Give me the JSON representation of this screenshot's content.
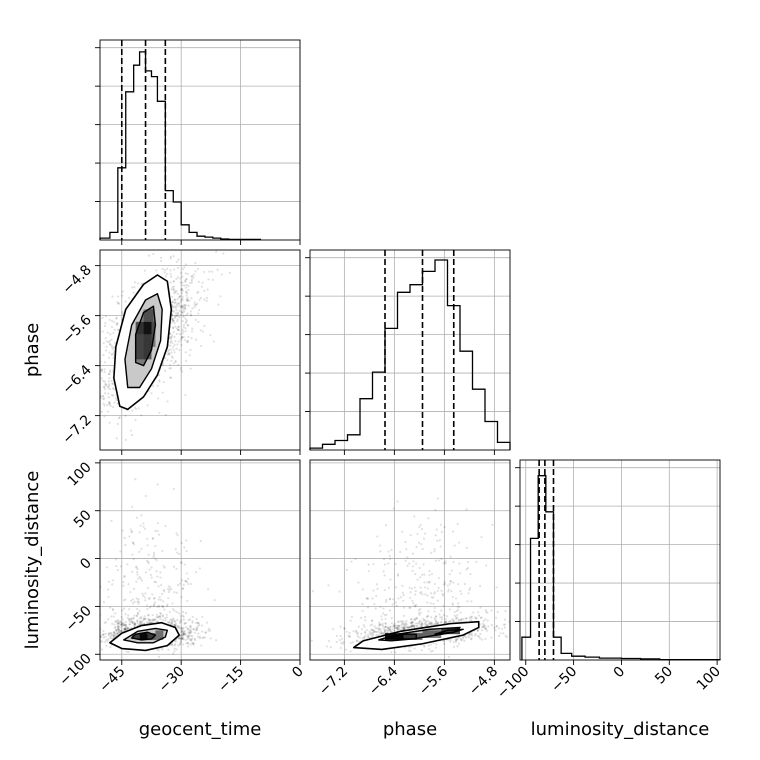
{
  "chart_data": {
    "type": "corner",
    "parameters": [
      "geocent_time",
      "phase",
      "luminosity_distance"
    ],
    "axis_labels": {
      "geocent_time": "geocent_time",
      "phase": "phase",
      "luminosity_distance": "luminosity_distance"
    },
    "ranges": {
      "geocent_time": [
        -50.5,
        0
      ],
      "phase": [
        -7.75,
        -4.55
      ],
      "luminosity_distance": [
        -106,
        103
      ]
    },
    "ticks": {
      "geocent_time": {
        "values": [
          -45,
          -30,
          -15,
          0
        ],
        "labels": [
          "−45",
          "−30",
          "−15",
          "0"
        ]
      },
      "phase": {
        "values": [
          -7.2,
          -6.4,
          -5.6,
          -4.8
        ],
        "labels": [
          "−7.2",
          "−6.4",
          "−5.6",
          "−4.8"
        ]
      },
      "luminosity_distance": {
        "values": [
          -100,
          -50,
          0,
          50,
          100
        ],
        "labels": [
          "−100",
          "−50",
          "0",
          "50",
          "100"
        ]
      }
    },
    "grid": true,
    "histograms": {
      "geocent_time": {
        "quantiles": [
          -45,
          -39,
          -34
        ],
        "bins": [
          [
            -50.5,
            -48.0,
            0.01
          ],
          [
            -48.0,
            -46.0,
            0.04
          ],
          [
            -46.0,
            -44.0,
            0.38
          ],
          [
            -44.0,
            -42.0,
            0.78
          ],
          [
            -42.0,
            -40.5,
            0.92
          ],
          [
            -40.5,
            -39.0,
            0.99
          ],
          [
            -39.0,
            -37.5,
            0.89
          ],
          [
            -37.5,
            -36.0,
            0.86
          ],
          [
            -36.0,
            -34.0,
            0.73
          ],
          [
            -34.0,
            -32.0,
            0.26
          ],
          [
            -32.0,
            -30.0,
            0.2
          ],
          [
            -30.0,
            -28.0,
            0.08
          ],
          [
            -28.0,
            -26.0,
            0.04
          ],
          [
            -26.0,
            -24.0,
            0.02
          ],
          [
            -24.0,
            -22.0,
            0.015
          ],
          [
            -22.0,
            -20.0,
            0.01
          ],
          [
            -20.0,
            -18.0,
            0.005
          ],
          [
            -18.0,
            -10.0,
            0.003
          ]
        ]
      },
      "phase": {
        "quantiles": [
          -6.55,
          -5.95,
          -5.45
        ],
        "bins": [
          [
            -7.75,
            -7.55,
            0.01
          ],
          [
            -7.55,
            -7.35,
            0.03
          ],
          [
            -7.35,
            -7.15,
            0.05
          ],
          [
            -7.15,
            -6.95,
            0.08
          ],
          [
            -6.95,
            -6.75,
            0.27
          ],
          [
            -6.75,
            -6.55,
            0.41
          ],
          [
            -6.55,
            -6.35,
            0.64
          ],
          [
            -6.35,
            -6.15,
            0.83
          ],
          [
            -6.15,
            -5.95,
            0.87
          ],
          [
            -5.95,
            -5.75,
            0.94
          ],
          [
            -5.75,
            -5.55,
            1.0
          ],
          [
            -5.55,
            -5.35,
            0.76
          ],
          [
            -5.35,
            -5.15,
            0.52
          ],
          [
            -5.15,
            -4.95,
            0.32
          ],
          [
            -4.95,
            -4.75,
            0.15
          ],
          [
            -4.75,
            -4.55,
            0.04
          ]
        ]
      },
      "luminosity_distance": {
        "quantiles": [
          -86,
          -80,
          -71
        ],
        "bins": [
          [
            -104,
            -95,
            0.12
          ],
          [
            -95,
            -87,
            0.64
          ],
          [
            -87,
            -79,
            0.97
          ],
          [
            -79,
            -71,
            0.78
          ],
          [
            -71,
            -63,
            0.12
          ],
          [
            -63,
            -52,
            0.035
          ],
          [
            -52,
            -38,
            0.02
          ],
          [
            -38,
            -23,
            0.015
          ],
          [
            -23,
            0,
            0.01
          ],
          [
            0,
            20,
            0.008
          ],
          [
            20,
            40,
            0.006
          ],
          [
            40,
            103,
            0.002
          ]
        ]
      }
    },
    "panels_2d": [
      {
        "x": "geocent_time",
        "y": "phase",
        "scatter_center": [
          -38.5,
          -5.95
        ],
        "scatter_spread": [
          6.5,
          0.55
        ],
        "scatter_correlation": 0.6,
        "contours": [
          [
            [
              -45.5,
              -7.05
            ],
            [
              -47,
              -6.6
            ],
            [
              -46.5,
              -6.1
            ],
            [
              -44,
              -5.5
            ],
            [
              -39.5,
              -5.1
            ],
            [
              -36,
              -4.95
            ],
            [
              -33.5,
              -5.05
            ],
            [
              -32.5,
              -5.5
            ],
            [
              -33.5,
              -6.1
            ],
            [
              -36,
              -6.55
            ],
            [
              -39.5,
              -6.9
            ],
            [
              -43.5,
              -7.1
            ]
          ],
          [
            [
              -43.5,
              -6.75
            ],
            [
              -44.2,
              -6.3
            ],
            [
              -42.5,
              -5.75
            ],
            [
              -39,
              -5.35
            ],
            [
              -36,
              -5.25
            ],
            [
              -34.8,
              -5.5
            ],
            [
              -35.2,
              -6.0
            ],
            [
              -37.5,
              -6.45
            ],
            [
              -40.5,
              -6.75
            ]
          ],
          [
            [
              -41.5,
              -6.35
            ],
            [
              -41.5,
              -5.9
            ],
            [
              -39.5,
              -5.55
            ],
            [
              -37,
              -5.45
            ],
            [
              -36.5,
              -5.75
            ],
            [
              -37.5,
              -6.15
            ],
            [
              -39.5,
              -6.4
            ]
          ]
        ],
        "density_blocks": [
          [
            -41.5,
            -39.5,
            -6.3,
            -5.9,
            0.45
          ],
          [
            -39.5,
            -37.5,
            -6.3,
            -5.9,
            0.55
          ],
          [
            -39.5,
            -37.5,
            -5.9,
            -5.7,
            0.85
          ],
          [
            -41.5,
            -39.5,
            -5.9,
            -5.7,
            0.6
          ],
          [
            -39.5,
            -37.0,
            -5.7,
            -5.5,
            0.35
          ],
          [
            -37.5,
            -36.5,
            -6.1,
            -5.7,
            0.4
          ]
        ]
      },
      {
        "x": "geocent_time",
        "y": "luminosity_distance",
        "scatter_center": [
          -38,
          -78
        ],
        "scatter_spread": [
          6,
          20
        ],
        "scatter_correlation": 0.0,
        "contours": [
          [
            [
              -48,
              -88
            ],
            [
              -45,
              -94
            ],
            [
              -39,
              -96
            ],
            [
              -33.5,
              -91
            ],
            [
              -30.5,
              -80
            ],
            [
              -31.5,
              -72
            ],
            [
              -35,
              -67
            ],
            [
              -40,
              -70
            ],
            [
              -45,
              -78
            ]
          ],
          [
            [
              -44.5,
              -85
            ],
            [
              -41,
              -88
            ],
            [
              -37,
              -88
            ],
            [
              -34,
              -82
            ],
            [
              -33.5,
              -75
            ],
            [
              -36.5,
              -73
            ],
            [
              -41,
              -76
            ]
          ],
          [
            [
              -42.5,
              -83
            ],
            [
              -40,
              -85
            ],
            [
              -37.5,
              -84
            ],
            [
              -36.5,
              -80
            ],
            [
              -38.5,
              -77
            ],
            [
              -41.5,
              -79
            ]
          ]
        ],
        "density_blocks": [
          [
            -40.5,
            -38.5,
            -85,
            -78,
            0.95
          ],
          [
            -38.5,
            -36.5,
            -85,
            -78,
            0.55
          ],
          [
            -36.5,
            -34.5,
            -85,
            -75,
            0.45
          ],
          [
            -42.5,
            -40.5,
            -84,
            -79,
            0.5
          ]
        ]
      },
      {
        "x": "phase",
        "y": "luminosity_distance",
        "scatter_center": [
          -5.95,
          -78
        ],
        "scatter_spread": [
          0.55,
          20
        ],
        "scatter_correlation": 0.35,
        "contours": [
          [
            [
              -7.05,
              -93
            ],
            [
              -6.9,
              -86
            ],
            [
              -6.3,
              -76
            ],
            [
              -5.5,
              -68
            ],
            [
              -5.05,
              -66
            ],
            [
              -5.05,
              -72
            ],
            [
              -5.3,
              -80
            ],
            [
              -5.95,
              -89
            ],
            [
              -6.6,
              -95
            ]
          ],
          [
            [
              -6.65,
              -85
            ],
            [
              -6.35,
              -79
            ],
            [
              -5.85,
              -74
            ],
            [
              -5.35,
              -72
            ],
            [
              -5.45,
              -77
            ],
            [
              -6.1,
              -84
            ],
            [
              -6.45,
              -86
            ]
          ],
          [
            [
              -6.5,
              -84
            ],
            [
              -6.3,
              -79
            ],
            [
              -6.05,
              -79
            ],
            [
              -6.05,
              -84
            ]
          ],
          [
            [
              -5.75,
              -79
            ],
            [
              -5.55,
              -75
            ],
            [
              -5.3,
              -74
            ],
            [
              -5.45,
              -77
            ]
          ]
        ],
        "density_blocks": [
          [
            -6.55,
            -6.25,
            -85,
            -78,
            0.95
          ],
          [
            -6.25,
            -5.95,
            -85,
            -78,
            0.55
          ],
          [
            -5.95,
            -5.65,
            -83,
            -75,
            0.5
          ],
          [
            -5.65,
            -5.35,
            -79,
            -73,
            0.7
          ]
        ]
      }
    ],
    "panels_empty": [
      "geocent_time-phase-upper",
      "geocent_time-luminosity_distance-upper",
      "phase-luminosity_distance-upper"
    ]
  }
}
